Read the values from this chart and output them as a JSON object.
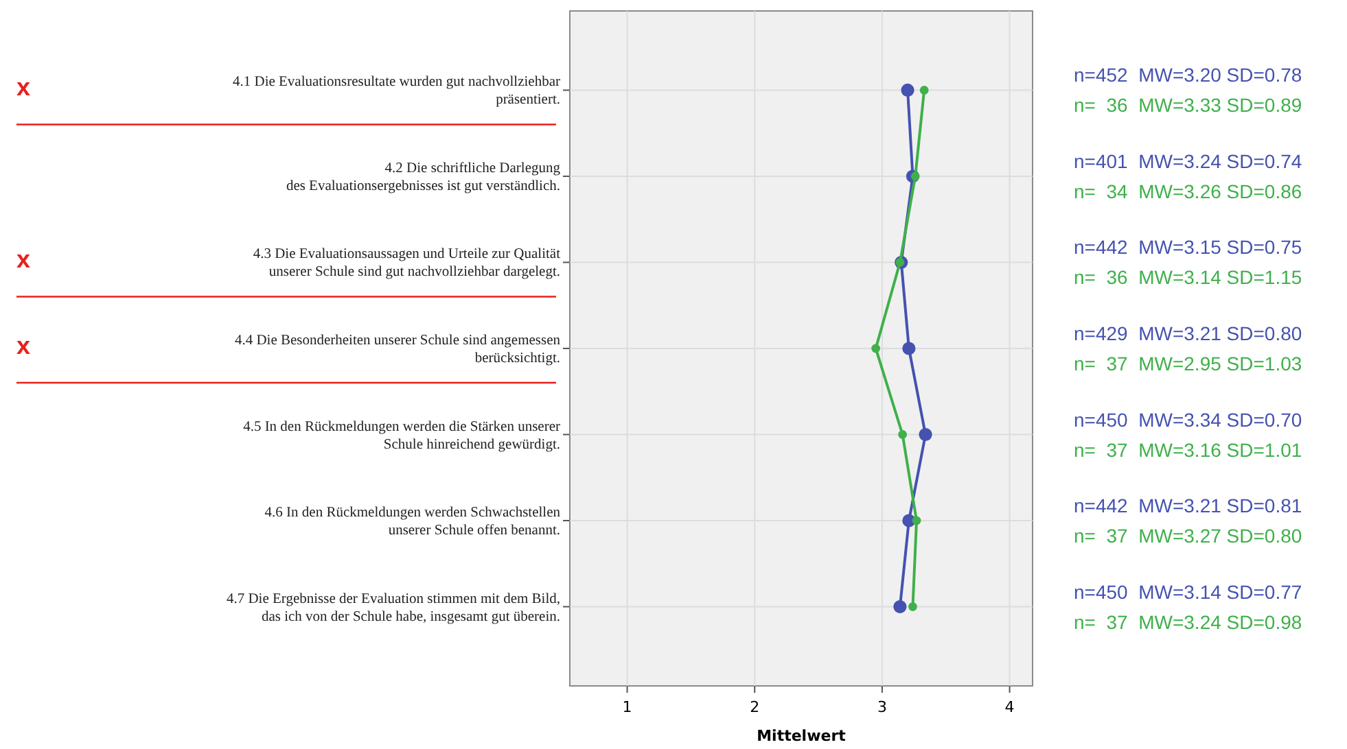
{
  "chart_data": {
    "type": "line",
    "orientation": "horizontal",
    "xlabel": "Mittelwert",
    "categories": [
      "4.1 Die Evaluationsresultate wurden gut nachvollziehbar\npräsentiert.",
      "4.2 Die schriftliche Darlegung\ndes Evaluationsergebnisses ist gut verständlich.",
      "4.3 Die Evaluationsaussagen und Urteile zur Qualität\nunserer Schule sind gut nachvollziehbar dargelegt.",
      "4.4 Die Besonderheiten unserer Schule sind angemessen\nberücksichtigt.",
      "4.5 In den Rückmeldungen werden die Stärken unserer\nSchule hinreichend gewürdigt.",
      "4.6 In den Rückmeldungen werden Schwachstellen\nunserer Schule offen benannt.",
      "4.7 Die Ergebnisse der Evaluation stimmen mit dem Bild,\ndas ich von der Schule habe, insgesamt gut überein."
    ],
    "series": [
      {
        "color": "#4452b0",
        "values": [
          3.2,
          3.24,
          3.15,
          3.21,
          3.34,
          3.21,
          3.14
        ]
      },
      {
        "color": "#3fb04a",
        "values": [
          3.33,
          3.26,
          3.14,
          2.95,
          3.16,
          3.27,
          3.24
        ]
      }
    ],
    "xlim": [
      0.55,
      4.18
    ],
    "xticks": [
      1,
      2,
      3,
      4
    ],
    "grid": true,
    "marker": "circle",
    "line_style": "solid",
    "annotations": [
      "n=452  MW=3.20 SD=0.78",
      "n=  36  MW=3.33 SD=0.89",
      "n=401  MW=3.24 SD=0.74",
      "n=  34  MW=3.26 SD=0.86",
      "n=442  MW=3.15 SD=0.75",
      "n=  36  MW=3.14 SD=1.15",
      "n=429  MW=3.21 SD=0.80",
      "n=  37  MW=2.95 SD=1.03",
      "n=450  MW=3.34 SD=0.70",
      "n=  37  MW=3.16 SD=1.01",
      "n=442  MW=3.21 SD=0.81",
      "n=  37  MW=3.27 SD=0.80",
      "n=450  MW=3.14 SD=0.77",
      "n=  37  MW=3.24 SD=0.98",
      "x",
      "x",
      "x"
    ]
  }
}
